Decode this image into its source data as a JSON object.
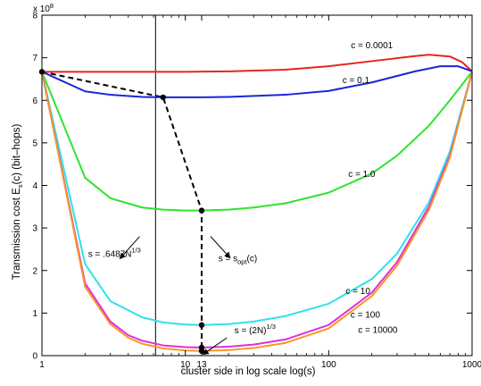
{
  "chart_data": {
    "type": "line",
    "xlabel": "cluster side in log scale log(s)",
    "ylabel_parts": {
      "main": "Transmission cost E",
      "sub": "s",
      "rest": "(c) (bit–hops)"
    },
    "x_scale": "log",
    "xlim": [
      1,
      1000
    ],
    "ylim": [
      0,
      800000000
    ],
    "y_exponent_label": {
      "base": "x 10",
      "exp": "8"
    },
    "x_ticks": [
      {
        "value": 1,
        "label": "1"
      },
      {
        "value": 10,
        "label": "10"
      },
      {
        "value": 13,
        "label": "13"
      },
      {
        "value": 100,
        "label": "100"
      },
      {
        "value": 1000,
        "label": "1000"
      }
    ],
    "y_ticks": [
      {
        "value": 0,
        "label": "0"
      },
      {
        "value": 100000000,
        "label": "1"
      },
      {
        "value": 200000000,
        "label": "2"
      },
      {
        "value": 300000000,
        "label": "3"
      },
      {
        "value": 400000000,
        "label": "4"
      },
      {
        "value": 500000000,
        "label": "5"
      },
      {
        "value": 600000000,
        "label": "6"
      },
      {
        "value": 700000000,
        "label": "7"
      },
      {
        "value": 800000000,
        "label": "8"
      }
    ],
    "grid": false,
    "series": [
      {
        "name": "c = 0.0001",
        "color": "#e8241f",
        "x": [
          1,
          2,
          5,
          10,
          20,
          50,
          100,
          200,
          400,
          500,
          700,
          850,
          1000
        ],
        "y": [
          667000000,
          667000000,
          667000000,
          667000000,
          668000000,
          672000000,
          680000000,
          692000000,
          704000000,
          707000000,
          703000000,
          690000000,
          668000000
        ]
      },
      {
        "name": "c = 0.1",
        "color": "#1727d6",
        "x": [
          1,
          2,
          3,
          5,
          7,
          10,
          13,
          20,
          50,
          100,
          200,
          400,
          600,
          800,
          1000
        ],
        "y": [
          667000000,
          621000000,
          613000000,
          608000000,
          607000000,
          607000000,
          607000000,
          608000000,
          613000000,
          622000000,
          642000000,
          668000000,
          680000000,
          680000000,
          668000000
        ]
      },
      {
        "name": "c = 1.0",
        "color": "#2ee32e",
        "x": [
          1,
          2,
          3,
          5,
          7,
          10,
          13,
          20,
          30,
          50,
          100,
          200,
          300,
          500,
          700,
          1000
        ],
        "y": [
          667000000,
          418000000,
          370000000,
          348000000,
          343000000,
          341000000,
          341000000,
          343000000,
          348000000,
          358000000,
          383000000,
          428000000,
          470000000,
          540000000,
          600000000,
          667000000
        ]
      },
      {
        "name": "c = 10",
        "color": "#2ee1ea",
        "x": [
          1,
          2,
          3,
          5,
          7,
          10,
          13,
          20,
          30,
          50,
          100,
          200,
          300,
          500,
          700,
          1000
        ],
        "y": [
          667000000,
          215000000,
          128000000,
          90000000,
          78000000,
          73000000,
          72000000,
          74000000,
          80000000,
          93000000,
          122000000,
          180000000,
          240000000,
          360000000,
          480000000,
          667000000
        ]
      },
      {
        "name": "c = 100",
        "color": "#e02fd9",
        "x": [
          1,
          2,
          3,
          4,
          5,
          7,
          10,
          13,
          20,
          30,
          50,
          100,
          200,
          300,
          500,
          700,
          1000
        ],
        "y": [
          667000000,
          170000000,
          80000000,
          48000000,
          35000000,
          24000000,
          20000000,
          19000000,
          21000000,
          26000000,
          38000000,
          72000000,
          148000000,
          220000000,
          350000000,
          470000000,
          667000000
        ]
      },
      {
        "name": "c = 10000",
        "color": "#f5962a",
        "x": [
          1,
          2,
          3,
          4,
          5,
          7,
          10,
          13,
          20,
          30,
          50,
          100,
          200,
          300,
          500,
          700,
          1000
        ],
        "y": [
          667000000,
          162000000,
          74000000,
          42000000,
          28000000,
          17000000,
          12000000,
          11000000,
          13000000,
          18000000,
          30000000,
          64000000,
          140000000,
          212000000,
          342000000,
          465000000,
          667000000
        ]
      }
    ],
    "optimal_path": {
      "color": "#000000",
      "x": [
        1,
        7,
        13,
        13,
        13,
        13
      ],
      "y": [
        667000000,
        607000000,
        341000000,
        72000000,
        19000000,
        11000000
      ]
    },
    "vertical_line": {
      "x": 6.2
    },
    "series_labels": [
      {
        "text": "c = 0.0001",
        "x": 200,
        "y": 722000000
      },
      {
        "text": "c = 0.1",
        "x": 155,
        "y": 640000000
      },
      {
        "text": "c = 1.0",
        "x": 170,
        "y": 420000000
      },
      {
        "text": "c = 10",
        "x": 160,
        "y": 145000000
      },
      {
        "text": "c = 100",
        "x": 180,
        "y": 89000000
      },
      {
        "text": "c = 10000",
        "x": 220,
        "y": 54000000
      }
    ],
    "annotations": [
      {
        "id": "cube-root",
        "base": "s = .6487N",
        "sup": "1/3",
        "sub": "",
        "after": "",
        "x": 2.1,
        "y": 232000000,
        "arrow_from": [
          4.8,
          280000000
        ],
        "arrow_to": [
          3.5,
          228000000
        ]
      },
      {
        "id": "sopt",
        "base": "s = s",
        "sub": "opt",
        "after": "(c)",
        "sup": "",
        "x": 17,
        "y": 222000000,
        "arrow_from": [
          15,
          280000000
        ],
        "arrow_to": [
          20.5,
          230000000
        ]
      },
      {
        "id": "two-n",
        "base": "s = (2N)",
        "sup": "1/3",
        "sub": "",
        "after": "",
        "x": 22,
        "y": 53000000,
        "arrow_from": [
          19.5,
          42000000
        ],
        "arrow_to": [
          13.3,
          3000000
        ]
      }
    ]
  }
}
